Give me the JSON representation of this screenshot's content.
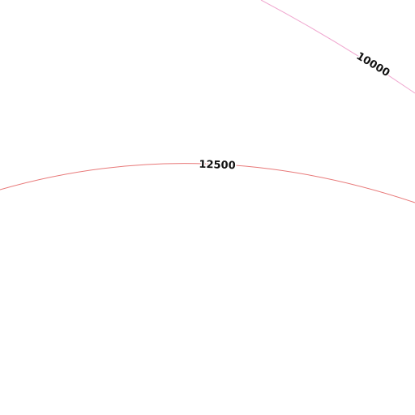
{
  "contours": [
    {
      "label": 10000
    },
    {
      "label": 12500
    }
  ]
}
